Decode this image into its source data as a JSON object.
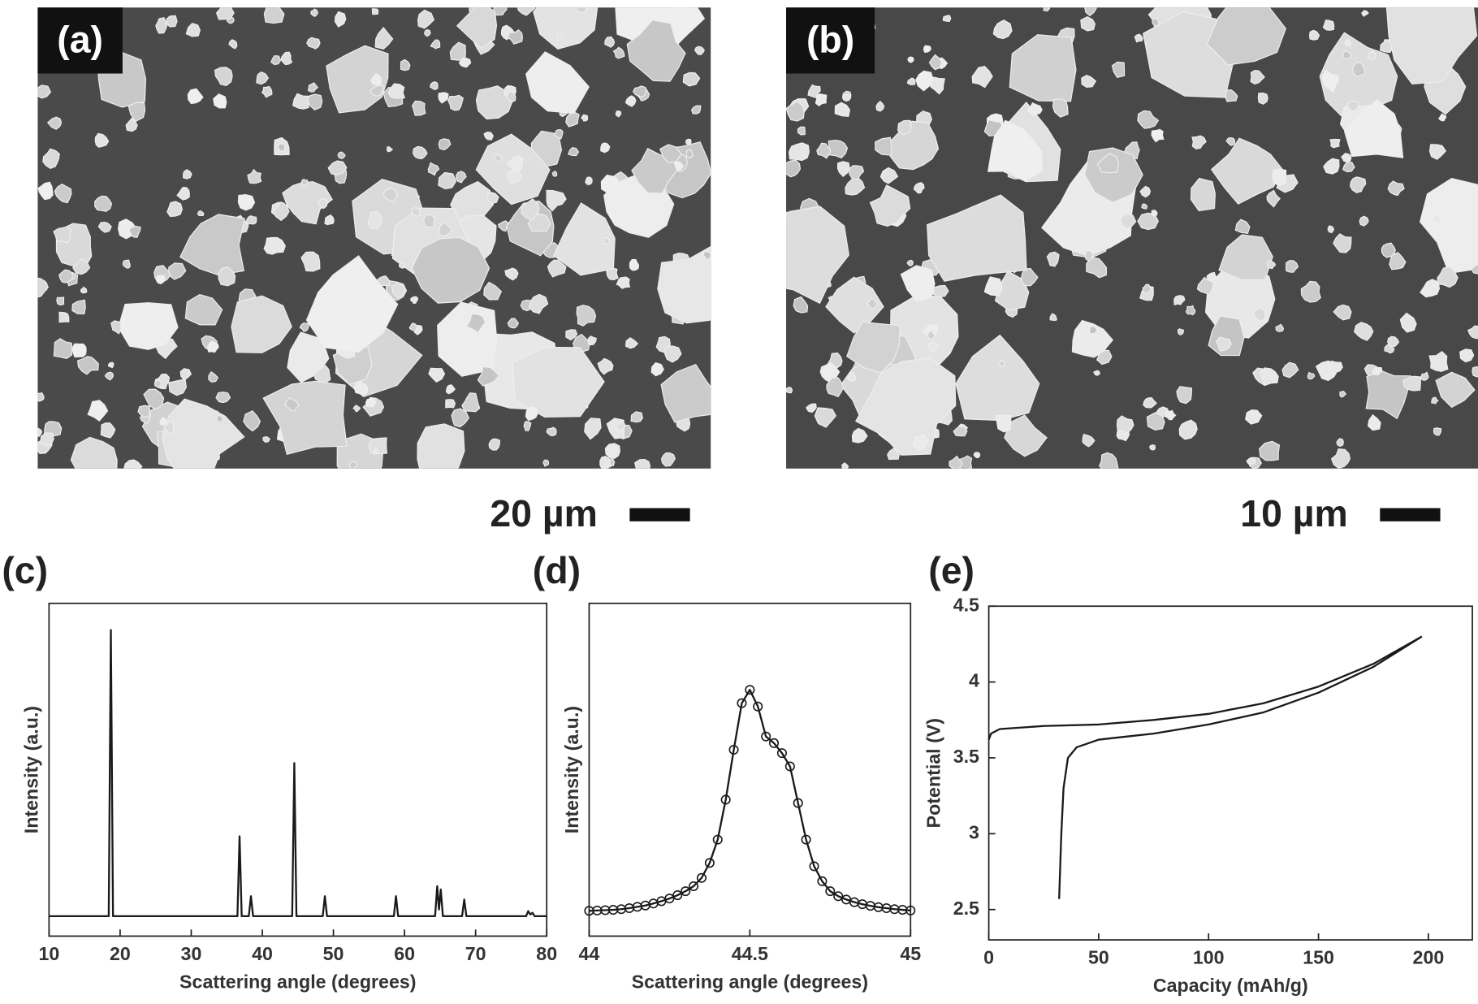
{
  "panels": [
    {
      "label": "(a)",
      "scale_bar": "20 µm"
    },
    {
      "label": "(b)",
      "scale_bar": "10 µm"
    }
  ],
  "chart_data": [
    {
      "type": "line",
      "label": "(c)",
      "xlabel": "Scattering angle (degrees)",
      "ylabel": "Intensity (a.u.)",
      "color": "#1a1a1a",
      "x": [
        10,
        18.4,
        18.7,
        19.0,
        36.5,
        36.8,
        37.1,
        38.1,
        38.4,
        38.7,
        44.2,
        44.5,
        44.8,
        48.5,
        48.8,
        49.1,
        58.5,
        58.8,
        59.1,
        64.3,
        64.6,
        64.85,
        65.1,
        65.4,
        68.1,
        68.4,
        68.7,
        77.1,
        77.4,
        77.7,
        78.0,
        78.3,
        80
      ],
      "values": [
        6,
        6,
        92,
        6,
        6,
        30,
        6,
        6,
        12,
        6,
        6,
        52,
        6,
        6,
        12,
        6,
        6,
        12,
        6,
        6,
        15,
        8,
        14,
        6,
        6,
        11,
        6,
        6,
        7.5,
        6.5,
        7,
        6,
        6
      ],
      "xlim": [
        10,
        80
      ],
      "xticks": [
        10,
        20,
        30,
        40,
        50,
        60,
        70,
        80
      ],
      "ylim": [
        0,
        100
      ]
    },
    {
      "type": "line",
      "label": "(d)",
      "xlabel": "Scattering angle (degrees)",
      "ylabel": "Intensity (a.u.)",
      "color": "#1a1a1a",
      "marker": "circle",
      "x": [
        44,
        44.025,
        44.05,
        44.075,
        44.1,
        44.125,
        44.15,
        44.175,
        44.2,
        44.225,
        44.25,
        44.275,
        44.3,
        44.325,
        44.35,
        44.375,
        44.4,
        44.425,
        44.45,
        44.475,
        44.5,
        44.525,
        44.55,
        44.575,
        44.6,
        44.625,
        44.65,
        44.675,
        44.7,
        44.725,
        44.75,
        44.775,
        44.8,
        44.825,
        44.85,
        44.875,
        44.9,
        44.925,
        44.95,
        44.975,
        45
      ],
      "values": [
        7.6,
        7.7,
        7.8,
        7.9,
        8.1,
        8.4,
        8.8,
        9.2,
        9.8,
        10.5,
        11.3,
        12.3,
        13.5,
        15,
        17.5,
        22,
        29,
        41,
        56,
        70,
        74,
        69,
        60,
        58,
        55,
        51,
        40,
        29,
        21,
        16.5,
        13.5,
        12,
        11,
        10.2,
        9.6,
        9.1,
        8.7,
        8.4,
        8.1,
        7.9,
        7.7
      ],
      "xlim": [
        44,
        45
      ],
      "xticks": [
        44,
        44.5,
        45
      ],
      "ylim": [
        0,
        100
      ]
    },
    {
      "type": "line",
      "label": "(e)",
      "xlabel": "Capacity (mAh/g)",
      "ylabel": "Potential (V)",
      "series": [
        {
          "color": "#1a1a1a",
          "x": [
            32,
            33,
            34,
            36,
            40,
            50,
            75,
            100,
            125,
            150,
            175,
            197
          ],
          "values": [
            2.57,
            3.0,
            3.3,
            3.5,
            3.57,
            3.62,
            3.66,
            3.72,
            3.8,
            3.93,
            4.1,
            4.3
          ]
        },
        {
          "color": "#1a1a1a",
          "x": [
            197,
            175,
            150,
            125,
            100,
            75,
            50,
            25,
            5,
            1,
            0
          ],
          "values": [
            4.3,
            4.12,
            3.97,
            3.86,
            3.79,
            3.75,
            3.72,
            3.71,
            3.69,
            3.66,
            3.62
          ]
        }
      ],
      "xlim": [
        0,
        220
      ],
      "xticks": [
        0,
        50,
        100,
        150,
        200
      ],
      "ylim": [
        2.3,
        4.5
      ],
      "yticks": [
        2.5,
        3,
        3.5,
        4,
        4.5
      ]
    }
  ]
}
